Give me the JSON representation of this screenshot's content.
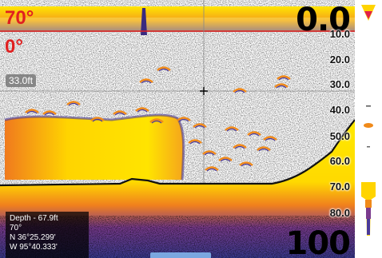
{
  "sonar": {
    "temp_max": "70°",
    "temp_min": "0°",
    "range_top": "0.0",
    "range_bottom": "100",
    "cursor_depth": "33.0ft",
    "depth_scale": [
      "10.0",
      "20.0",
      "30.0",
      "40.0",
      "50.0",
      "60.0",
      "70.0",
      "80.0"
    ]
  },
  "info": {
    "depth": "Depth - 67.9ft",
    "temperature": "70°",
    "latitude": "N  36°25.299'",
    "longitude": "W  95°40.333'"
  },
  "colors": {
    "strong_return": "#ffe600",
    "medium_return": "#f08a1a",
    "weak_return": "#4a3a9a",
    "temp_line": "#e02020",
    "bottom_line": "#111111"
  }
}
